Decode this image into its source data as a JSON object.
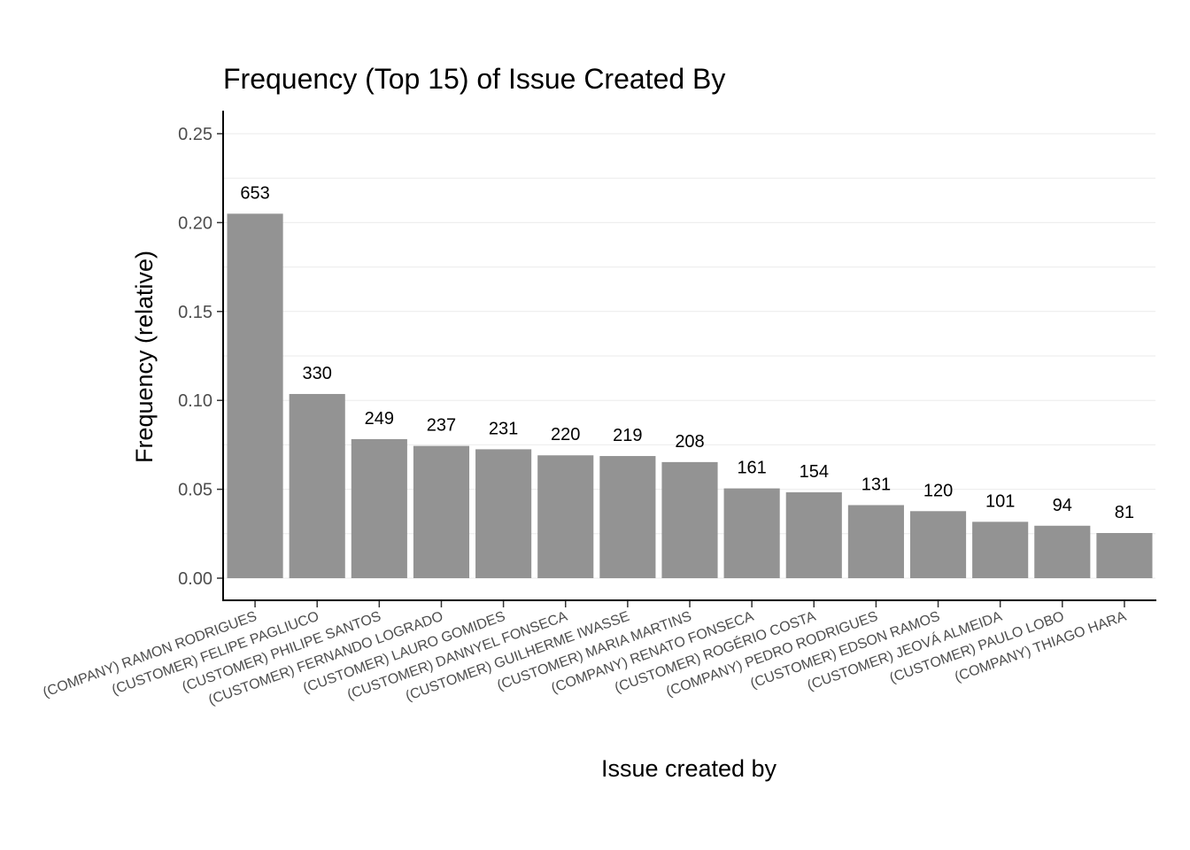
{
  "chart_data": {
    "type": "bar",
    "title": "Frequency (Top 15) of Issue Created By",
    "xlabel": "Issue created by",
    "ylabel": "Frequency (relative)",
    "ylim": [
      -0.013,
      0.262
    ],
    "yticks": [
      0.0,
      0.05,
      0.1,
      0.15,
      0.2,
      0.25
    ],
    "ytick_labels": [
      "0.00",
      "0.05",
      "0.10",
      "0.15",
      "0.20",
      "0.25"
    ],
    "grid": true,
    "bar_color": "#939393",
    "categories": [
      "(COMPANY) RAMON RODRIGUES",
      "(CUSTOMER) FELIPE PAGLIUCO",
      "(CUSTOMER) PHILIPE SANTOS",
      "(CUSTOMER) FERNANDO LOGRADO",
      "(CUSTOMER) LAURO GOMIDES",
      "(CUSTOMER) DANNYEL FONSECA",
      "(CUSTOMER) GUILHERME IWASSE",
      "(CUSTOMER) MARIA MARTINS",
      "(COMPANY) RENATO FONSECA",
      "(CUSTOMER) ROGÉRIO COSTA",
      "(COMPANY) PEDRO RODRIGUES",
      "(CUSTOMER) EDSON RAMOS",
      "(CUSTOMER) JEOVÁ ALMEIDA",
      "(CUSTOMER) PAULO LOBO",
      "(COMPANY) THIAGO HARA"
    ],
    "values": [
      0.205,
      0.1036,
      0.0782,
      0.0744,
      0.0725,
      0.0691,
      0.0687,
      0.0653,
      0.0505,
      0.0483,
      0.0411,
      0.0377,
      0.0317,
      0.0295,
      0.0254
    ],
    "data_labels": [
      "653",
      "330",
      "249",
      "237",
      "231",
      "220",
      "219",
      "208",
      "161",
      "154",
      "131",
      "120",
      "101",
      "94",
      "81"
    ]
  }
}
